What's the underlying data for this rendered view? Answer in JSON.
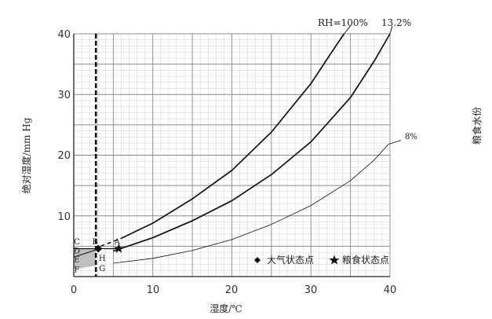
{
  "chart_data": {
    "type": "line",
    "xlabel": "湿度/℃",
    "ylabel": "绝对湿度/mm Hg",
    "right_label": "粮食水份",
    "xlim": [
      0,
      40
    ],
    "ylim": [
      0,
      40
    ],
    "x_ticks": [
      "0",
      "10",
      "20",
      "30",
      "40"
    ],
    "y_ticks": [
      "10",
      "20",
      "30",
      "40"
    ],
    "grid": true,
    "series": [
      {
        "name": "RH=100%",
        "x": [
          6,
          10,
          15,
          20,
          25,
          30,
          33,
          34.2
        ],
        "y": [
          6.3,
          8.8,
          12.8,
          17.5,
          23.8,
          31.8,
          37.7,
          40
        ]
      },
      {
        "name": "13.2%",
        "x": [
          5,
          10,
          15,
          20,
          25,
          30,
          35,
          38,
          40
        ],
        "y": [
          4.2,
          6.4,
          9.2,
          12.5,
          16.8,
          22.2,
          29.5,
          35.5,
          40
        ]
      },
      {
        "name": "8%",
        "x": [
          5,
          10,
          15,
          20,
          25,
          30,
          35,
          38,
          39.8
        ],
        "y": [
          2.2,
          3.0,
          4.3,
          6.1,
          8.6,
          11.7,
          15.8,
          19.2,
          21.8
        ]
      }
    ],
    "vline_x": 2.8,
    "points": {
      "A": {
        "x": 5.7,
        "y": 4.6
      },
      "B": {
        "x": 3.1,
        "y": 4.6
      }
    },
    "point_labels": [
      {
        "text": "A",
        "x": 5.5,
        "y": 5.3
      },
      {
        "text": "B",
        "x": 2.7,
        "y": 5.3
      },
      {
        "text": "C",
        "x": 0.4,
        "y": 5.3
      },
      {
        "text": "D",
        "x": 0.4,
        "y": 3.8
      },
      {
        "text": "E",
        "x": 0.4,
        "y": 2.4
      },
      {
        "text": "F",
        "x": 0.4,
        "y": 0.7
      },
      {
        "text": "H",
        "x": 3.6,
        "y": 2.6
      },
      {
        "text": "G",
        "x": 3.6,
        "y": 0.9
      }
    ],
    "legend": {
      "placement": "bottom-right",
      "items": [
        {
          "symbol": "diamond",
          "label": "大气状态点"
        },
        {
          "symbol": "star",
          "label": "粮食状态点"
        }
      ]
    },
    "colors": {
      "line": "#111111",
      "grid_major": "#8a8a8a",
      "grid_minor": "#d2d2d2",
      "shade": "#b5b5b5"
    }
  }
}
